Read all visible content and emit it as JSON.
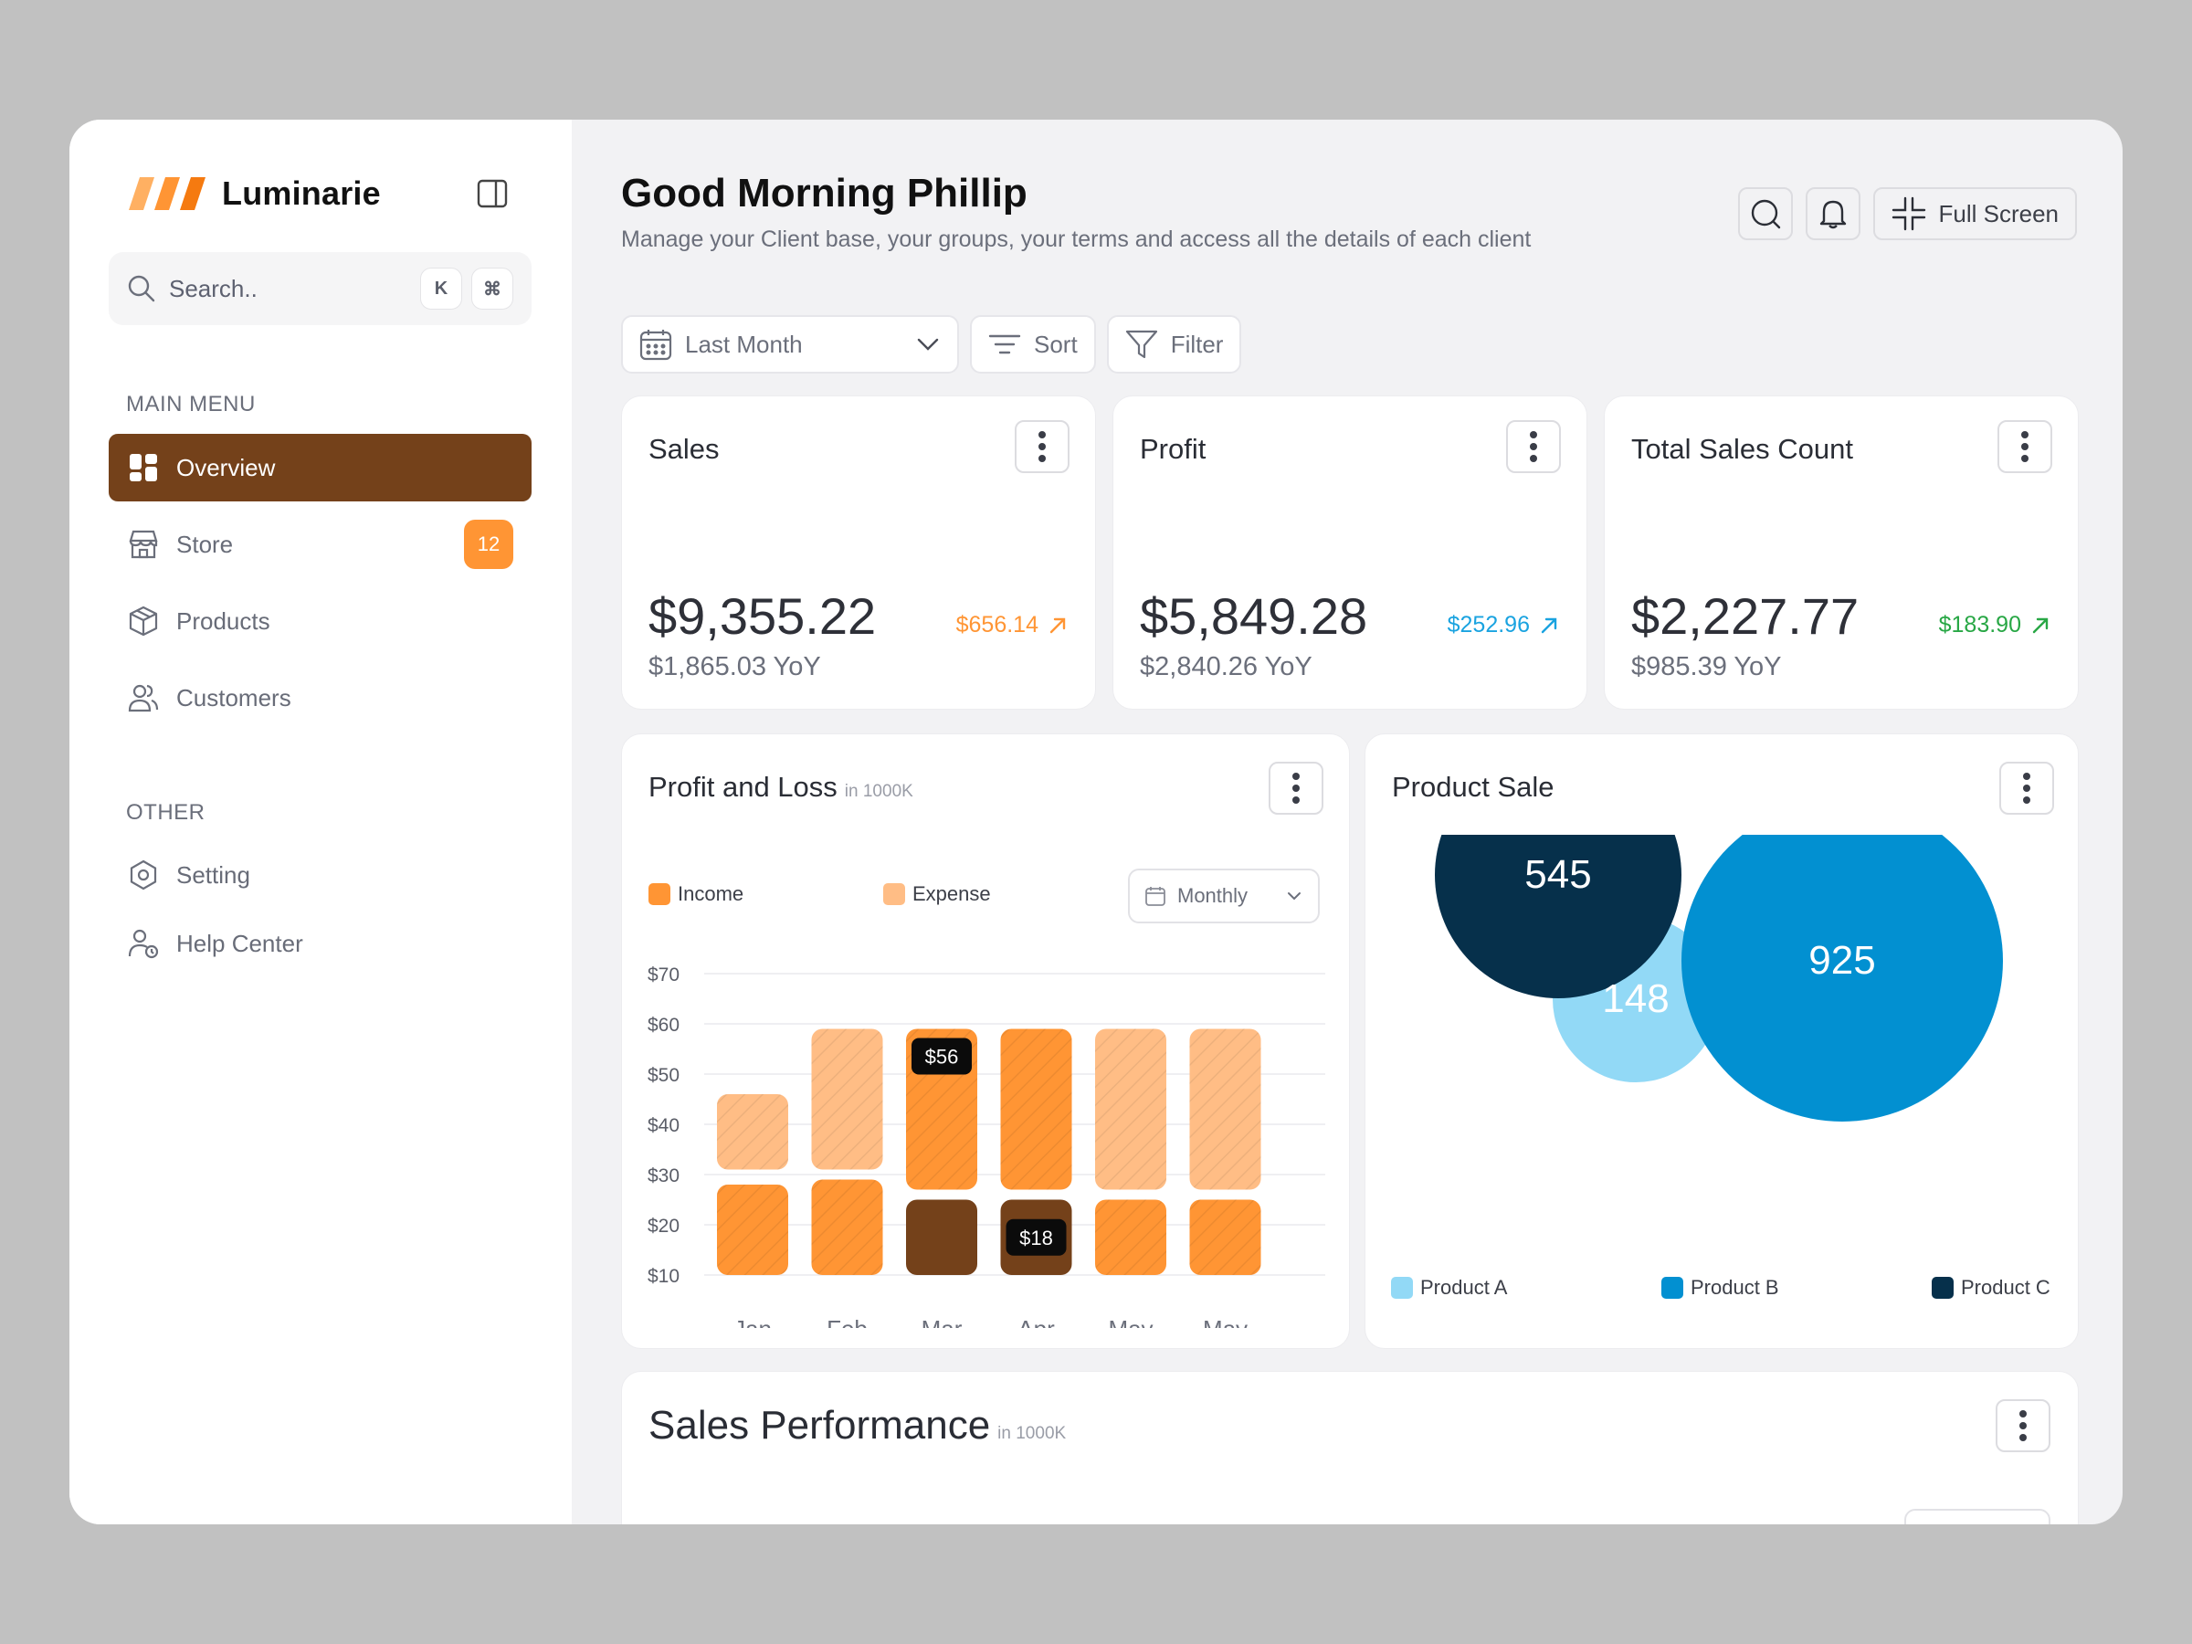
{
  "brand": {
    "name": "Luminarie"
  },
  "search": {
    "placeholder": "Search..",
    "shortcut_key": "K",
    "shortcut_mod": "⌘"
  },
  "sidebar": {
    "main_menu_label": "MAIN MENU",
    "other_label": "OTHER",
    "items": [
      {
        "label": "Overview",
        "icon": "grid-icon",
        "active": true
      },
      {
        "label": "Store",
        "icon": "store-icon",
        "badge": "12"
      },
      {
        "label": "Products",
        "icon": "box-icon"
      },
      {
        "label": "Customers",
        "icon": "users-icon"
      }
    ],
    "other_items": [
      {
        "label": "Setting",
        "icon": "gear-icon"
      },
      {
        "label": "Help Center",
        "icon": "help-user-icon"
      }
    ]
  },
  "header": {
    "greeting": "Good Morning Phillip",
    "subtitle": "Manage your Client base, your groups, your terms and access all the details of each client",
    "fullscreen_label": "Full Screen"
  },
  "filters": {
    "date_range": "Last Month",
    "sort_label": "Sort",
    "filter_label": "Filter"
  },
  "stats": [
    {
      "title": "Sales",
      "value": "$9,355.22",
      "delta": "$656.14",
      "yoy": "$1,865.03 YoY",
      "color": "#ff9534"
    },
    {
      "title": "Profit",
      "value": "$5,849.28",
      "delta": "$252.96",
      "yoy": "$2,840.26 YoY",
      "color": "#1aa3e0"
    },
    {
      "title": "Total Sales Count",
      "value": "$2,227.77",
      "delta": "$183.90",
      "yoy": "$985.39 YoY",
      "color": "#28a745"
    }
  ],
  "pnl": {
    "title": "Profit and Loss",
    "unit": "in 1000K",
    "income_label": "Income",
    "expense_label": "Expense",
    "period": "Monthly",
    "colors": {
      "income": "#ff9534",
      "expense": "#ffbd85",
      "loss": "#74411a"
    }
  },
  "product_sale": {
    "title": "Product Sale",
    "legend": [
      {
        "label": "Product A",
        "color": "#92d9f6"
      },
      {
        "label": "Product B",
        "color": "#0290d1"
      },
      {
        "label": "Product C",
        "color": "#06304b"
      }
    ],
    "values": {
      "a": "148",
      "b": "925",
      "c": "545"
    }
  },
  "sales_performance": {
    "title": "Sales Performance",
    "unit": "in 1000K"
  },
  "chart_data": {
    "type": "bar",
    "categories": [
      "Jan",
      "Feb",
      "Mar",
      "Apr",
      "May",
      "May"
    ],
    "y_ticks": [
      "$10",
      "$20",
      "$30",
      "$40",
      "$50",
      "$60",
      "$70"
    ],
    "ylim": [
      10,
      70
    ],
    "stacked": true,
    "segments": [
      {
        "bottom": 10,
        "top": 28,
        "style": "income"
      },
      {
        "bottom": 31,
        "top": 46,
        "style": "expense"
      },
      {
        "bottom": 10,
        "top": 29,
        "style": "income"
      },
      {
        "bottom": 31,
        "top": 59,
        "style": "expense"
      },
      {
        "bottom": 10,
        "top": 25,
        "style": "loss"
      },
      {
        "bottom": 27,
        "top": 59,
        "style": "income",
        "label": "$56"
      },
      {
        "bottom": 10,
        "top": 25,
        "style": "loss",
        "label": "$18"
      },
      {
        "bottom": 27,
        "top": 59,
        "style": "income"
      },
      {
        "bottom": 10,
        "top": 25,
        "style": "income"
      },
      {
        "bottom": 27,
        "top": 59,
        "style": "expense"
      },
      {
        "bottom": 10,
        "top": 25,
        "style": "income"
      },
      {
        "bottom": 27,
        "top": 59,
        "style": "expense"
      }
    ]
  }
}
